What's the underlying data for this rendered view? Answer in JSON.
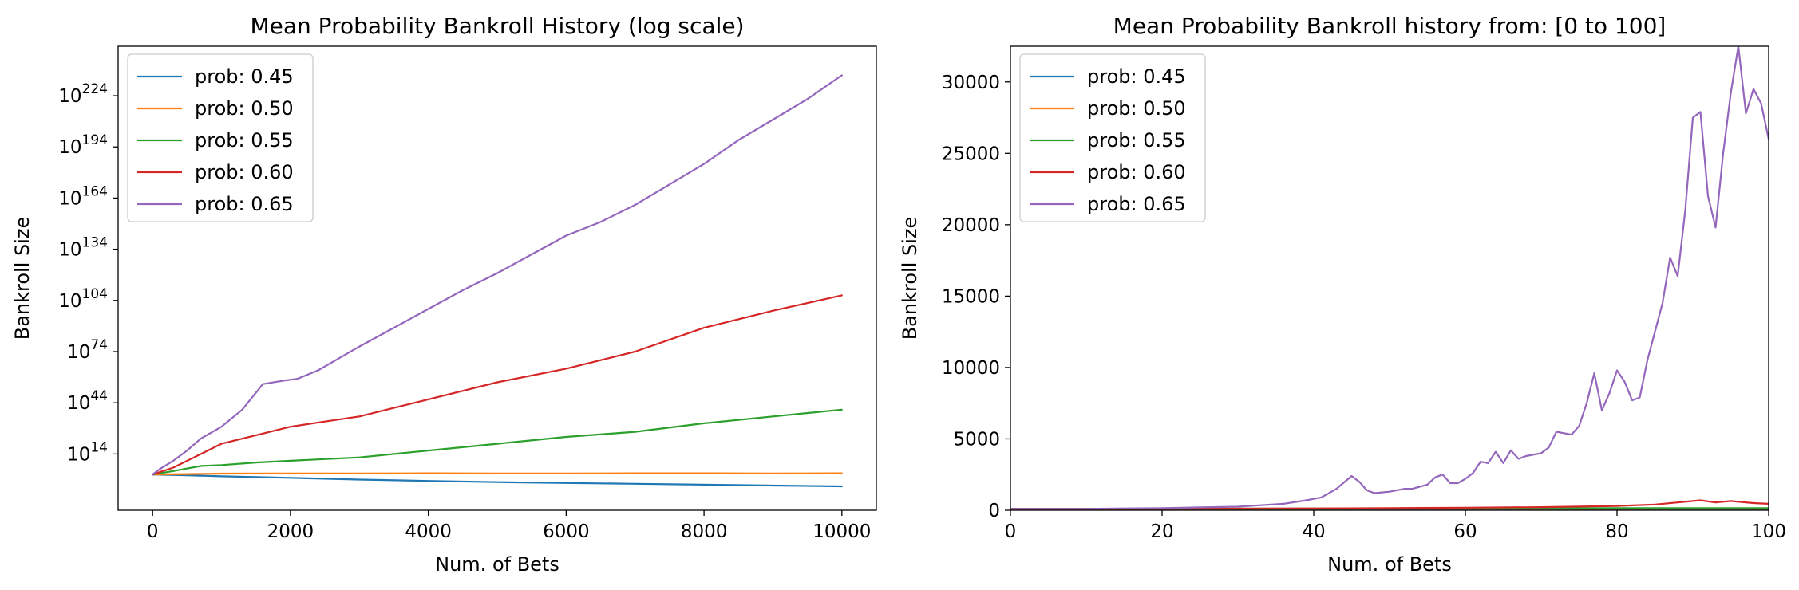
{
  "chart_data": [
    {
      "type": "line",
      "title": "Mean Probability Bankroll History (log scale)",
      "xlabel": "Num. of Bets",
      "ylabel": "Bankroll Size",
      "yscale": "log",
      "xlim": [
        -500,
        10500
      ],
      "ylim_log10": [
        -19,
        253
      ],
      "xticks": [
        0,
        2000,
        4000,
        6000,
        8000,
        10000
      ],
      "xtick_labels": [
        "0",
        "2000",
        "4000",
        "6000",
        "8000",
        "10000"
      ],
      "ytick_exponents": [
        14,
        44,
        74,
        104,
        134,
        164,
        194,
        224
      ],
      "ytick_base": "10",
      "grid": false,
      "legend_position": "top-left",
      "series": [
        {
          "name": "prob: 0.45",
          "color": "#1f77b4",
          "x": [
            0,
            500,
            1000,
            2000,
            3000,
            4000,
            5000,
            6000,
            7000,
            8000,
            9000,
            10000
          ],
          "log10_values": [
            2,
            1.5,
            0.9,
            0,
            -1,
            -1.8,
            -2.5,
            -3,
            -3.5,
            -4,
            -4.5,
            -5
          ]
        },
        {
          "name": "prob: 0.50",
          "color": "#ff7f0e",
          "x": [
            0,
            500,
            1000,
            2000,
            3000,
            4000,
            5000,
            6000,
            7000,
            8000,
            9000,
            10000
          ],
          "log10_values": [
            2,
            2.2,
            2.5,
            2.6,
            2.6,
            2.7,
            2.6,
            2.6,
            2.7,
            2.7,
            2.6,
            2.7
          ]
        },
        {
          "name": "prob: 0.55",
          "color": "#2ca02c",
          "x": [
            0,
            300,
            700,
            1000,
            1500,
            2000,
            3000,
            4000,
            5000,
            6000,
            7000,
            8000,
            9000,
            10000
          ],
          "log10_values": [
            2,
            4,
            7,
            7.5,
            9,
            10,
            12,
            16,
            20,
            24,
            27,
            32,
            36,
            40
          ]
        },
        {
          "name": "prob: 0.60",
          "color": "#d62728",
          "x": [
            0,
            300,
            600,
            1000,
            1500,
            2000,
            2500,
            3000,
            4000,
            5000,
            6000,
            7000,
            8000,
            9000,
            10000
          ],
          "log10_values": [
            2,
            6,
            12,
            20,
            25,
            30,
            33,
            36,
            46,
            56,
            64,
            74,
            88,
            98,
            107
          ]
        },
        {
          "name": "prob: 0.65",
          "color": "#9467bd",
          "x": [
            0,
            100,
            300,
            500,
            700,
            1000,
            1300,
            1600,
            1900,
            2100,
            2400,
            2700,
            3000,
            3500,
            4000,
            4500,
            5000,
            5500,
            6000,
            6500,
            7000,
            7500,
            8000,
            8500,
            9000,
            9500,
            10000
          ],
          "log10_values": [
            2,
            5,
            10,
            16,
            23,
            30,
            40,
            55,
            57,
            58,
            63,
            70,
            77,
            88,
            99,
            110,
            120,
            131,
            142,
            150,
            160,
            172,
            184,
            198,
            210,
            222,
            236
          ]
        }
      ]
    },
    {
      "type": "line",
      "title": "Mean Probability Bankroll history from: [0 to 100]",
      "xlabel": "Num. of Bets",
      "ylabel": "Bankroll Size",
      "xlim": [
        0,
        100
      ],
      "ylim": [
        0,
        32500
      ],
      "xticks": [
        0,
        20,
        40,
        60,
        80,
        100
      ],
      "xtick_labels": [
        "0",
        "20",
        "40",
        "60",
        "80",
        "100"
      ],
      "yticks": [
        0,
        5000,
        10000,
        15000,
        20000,
        25000,
        30000
      ],
      "ytick_labels": [
        "0",
        "5000",
        "10000",
        "15000",
        "20000",
        "25000",
        "30000"
      ],
      "grid": false,
      "legend_position": "top-left",
      "series": [
        {
          "name": "prob: 0.45",
          "color": "#1f77b4",
          "x": [
            0,
            20,
            40,
            60,
            80,
            100
          ],
          "values": [
            100,
            80,
            60,
            50,
            40,
            30
          ]
        },
        {
          "name": "prob: 0.50",
          "color": "#ff7f0e",
          "x": [
            0,
            20,
            40,
            60,
            80,
            100
          ],
          "values": [
            100,
            100,
            100,
            100,
            100,
            100
          ]
        },
        {
          "name": "prob: 0.55",
          "color": "#2ca02c",
          "x": [
            0,
            20,
            40,
            60,
            80,
            100
          ],
          "values": [
            100,
            110,
            120,
            130,
            150,
            150
          ]
        },
        {
          "name": "prob: 0.60",
          "color": "#d62728",
          "x": [
            0,
            20,
            30,
            40,
            50,
            60,
            70,
            80,
            85,
            88,
            90,
            91,
            93,
            95,
            96,
            98,
            100
          ],
          "values": [
            100,
            100,
            110,
            130,
            150,
            180,
            220,
            300,
            400,
            550,
            650,
            700,
            550,
            650,
            600,
            500,
            450
          ]
        },
        {
          "name": "prob: 0.65",
          "color": "#9467bd",
          "x": [
            0,
            10,
            20,
            30,
            33,
            36,
            39,
            41,
            43,
            45,
            46,
            47,
            48,
            50,
            52,
            53,
            55,
            56,
            57,
            58,
            59,
            60,
            61,
            62,
            63,
            64,
            65,
            66,
            67,
            68,
            70,
            71,
            72,
            73,
            74,
            75,
            76,
            77,
            78,
            79,
            80,
            81,
            82,
            83,
            84,
            85,
            86,
            87,
            88,
            89,
            90,
            91,
            92,
            93,
            94,
            95,
            96,
            97,
            98,
            99,
            100
          ],
          "values": [
            100,
            100,
            150,
            250,
            350,
            450,
            700,
            900,
            1500,
            2400,
            2000,
            1400,
            1200,
            1300,
            1500,
            1500,
            1800,
            2300,
            2500,
            1900,
            1900,
            2200,
            2600,
            3400,
            3300,
            4100,
            3300,
            4200,
            3600,
            3800,
            4000,
            4400,
            5500,
            5400,
            5300,
            5900,
            7500,
            9600,
            7000,
            8200,
            9800,
            9000,
            7700,
            7900,
            10500,
            12500,
            14500,
            17700,
            16400,
            21000,
            27500,
            27900,
            22000,
            19800,
            25000,
            29200,
            32500,
            27800,
            29500,
            28500,
            26000
          ]
        }
      ]
    }
  ]
}
